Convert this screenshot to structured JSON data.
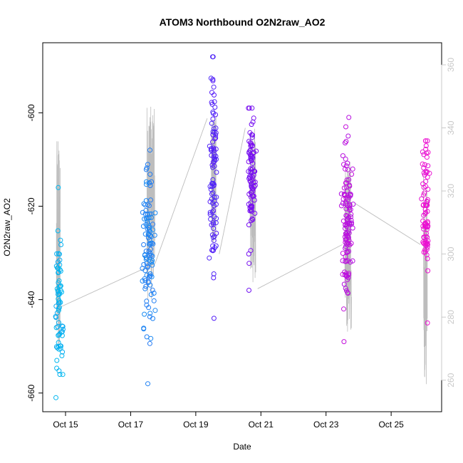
{
  "chart_data": {
    "type": "scatter",
    "title": "ATOM3 Northbound O2N2raw_AO2",
    "xlabel": "Date",
    "ylabel": "O2N2raw_AO2",
    "x_unit": "days since Oct 15 00:00",
    "xlim": [
      -0.7,
      11.55
    ],
    "ylim": [
      -664,
      -585
    ],
    "x_ticks": [
      {
        "value": 0,
        "label": "Oct 15"
      },
      {
        "value": 2,
        "label": "Oct 17"
      },
      {
        "value": 4,
        "label": "Oct 19"
      },
      {
        "value": 6,
        "label": "Oct 21"
      },
      {
        "value": 8,
        "label": "Oct 23"
      },
      {
        "value": 10,
        "label": "Oct 25"
      }
    ],
    "y_ticks": [
      {
        "value": -600,
        "label": "-600"
      },
      {
        "value": -620,
        "label": "-620"
      },
      {
        "value": -640,
        "label": "-640"
      },
      {
        "value": -660,
        "label": "-660"
      }
    ],
    "secondary_axis": {
      "position": "right",
      "color": "#c8c8c8",
      "ylim": [
        250,
        367
      ],
      "ticks": [
        {
          "value": 260,
          "label": "260"
        },
        {
          "value": 280,
          "label": "280"
        },
        {
          "value": 300,
          "label": "300"
        },
        {
          "value": 320,
          "label": "320"
        },
        {
          "value": 340,
          "label": "340"
        },
        {
          "value": 360,
          "label": "360"
        }
      ]
    },
    "point_color_start": "#00b8f0",
    "point_color_mid": "#5a10f8",
    "point_color_end": "#f010d0",
    "line_color": "#bdbdbd",
    "clusters": [
      {
        "x_center": -0.2,
        "x_spread": 0.09,
        "y_min": -661,
        "y_max": -616,
        "y_center": -640,
        "count": 70,
        "color_t": 0.02
      },
      {
        "x_center": 2.55,
        "x_spread": 0.15,
        "y_min": -658,
        "y_max": -608,
        "y_center": -629,
        "count": 110,
        "color_t": 0.16
      },
      {
        "x_center": 4.55,
        "x_spread": 0.09,
        "y_min": -644,
        "y_max": -588,
        "y_center": -612,
        "count": 95,
        "color_t": 0.45
      },
      {
        "x_center": 5.7,
        "x_spread": 0.1,
        "y_min": -638,
        "y_max": -599,
        "y_center": -613,
        "count": 95,
        "color_t": 0.6
      },
      {
        "x_center": 8.65,
        "x_spread": 0.13,
        "y_min": -649,
        "y_max": -601,
        "y_center": -623,
        "count": 120,
        "color_t": 0.82
      },
      {
        "x_center": 11.05,
        "x_spread": 0.09,
        "y_min": -645,
        "y_max": -606,
        "y_center": -619,
        "count": 85,
        "color_t": 0.98
      }
    ],
    "secondary_series": {
      "name": "secondary trace (gray line)",
      "connectors": [
        {
          "x": [
            -0.2,
            2.75
          ],
          "y": [
            283,
            297
          ]
        },
        {
          "x": [
            2.75,
            4.35
          ],
          "y": [
            297,
            343
          ]
        },
        {
          "x": [
            4.72,
            5.52
          ],
          "y": [
            300,
            340
          ]
        },
        {
          "x": [
            5.9,
            8.5
          ],
          "y": [
            289,
            303
          ]
        },
        {
          "x": [
            8.9,
            10.9
          ],
          "y": [
            316,
            303
          ]
        }
      ],
      "clusters": [
        {
          "x_center": -0.22,
          "x_spread": 0.06,
          "y_min": 270,
          "y_max": 336,
          "count": 45
        },
        {
          "x_center": 2.62,
          "x_spread": 0.12,
          "y_min": 285,
          "y_max": 348,
          "count": 70
        },
        {
          "x_center": 4.55,
          "x_spread": 0.07,
          "y_min": 303,
          "y_max": 345,
          "count": 55
        },
        {
          "x_center": 5.75,
          "x_spread": 0.09,
          "y_min": 290,
          "y_max": 340,
          "count": 60
        },
        {
          "x_center": 8.68,
          "x_spread": 0.1,
          "y_min": 275,
          "y_max": 330,
          "count": 65
        },
        {
          "x_center": 11.05,
          "x_spread": 0.06,
          "y_min": 258,
          "y_max": 325,
          "count": 50
        }
      ]
    }
  }
}
